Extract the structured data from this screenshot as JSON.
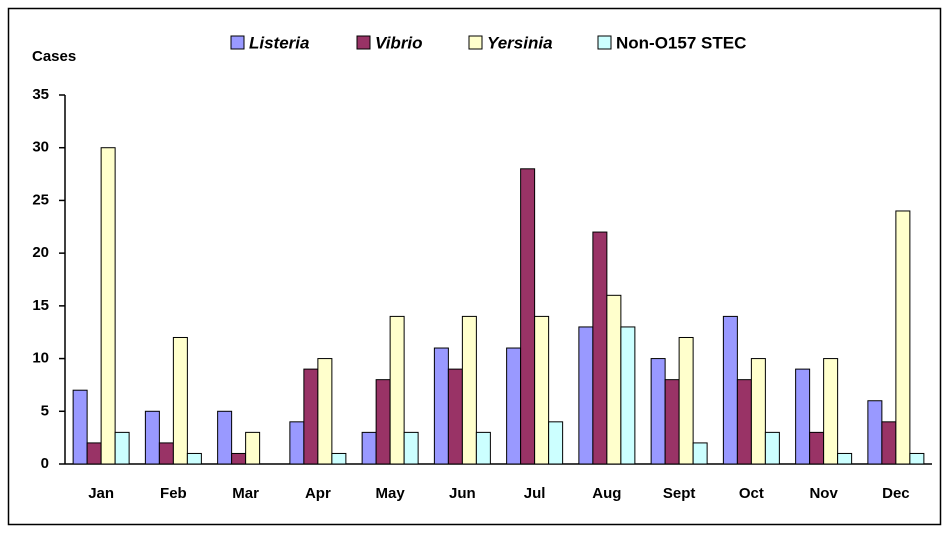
{
  "chart_data": {
    "type": "bar",
    "y_label": "Cases",
    "categories": [
      "Jan",
      "Feb",
      "Mar",
      "Apr",
      "May",
      "Jun",
      "Jul",
      "Aug",
      "Sept",
      "Oct",
      "Nov",
      "Dec"
    ],
    "series": [
      {
        "name": "Listeria",
        "color": "#9999ff",
        "values": [
          7,
          5,
          5,
          4,
          3,
          11,
          11,
          13,
          10,
          14,
          9,
          6
        ]
      },
      {
        "name": "Vibrio",
        "color": "#993366",
        "values": [
          2,
          2,
          1,
          9,
          8,
          9,
          28,
          22,
          8,
          8,
          3,
          4
        ]
      },
      {
        "name": "Yersinia",
        "color": "#ffffcc",
        "values": [
          30,
          12,
          3,
          10,
          14,
          14,
          14,
          16,
          12,
          10,
          10,
          24
        ]
      },
      {
        "name": "Non-O157 STEC",
        "color": "#ccffff",
        "values": [
          3,
          1,
          0,
          1,
          3,
          3,
          4,
          13,
          2,
          3,
          1,
          1
        ]
      }
    ],
    "ylim": [
      0,
      35
    ],
    "yticks": [
      0,
      5,
      10,
      15,
      20,
      25,
      30,
      35
    ],
    "grid": false
  }
}
